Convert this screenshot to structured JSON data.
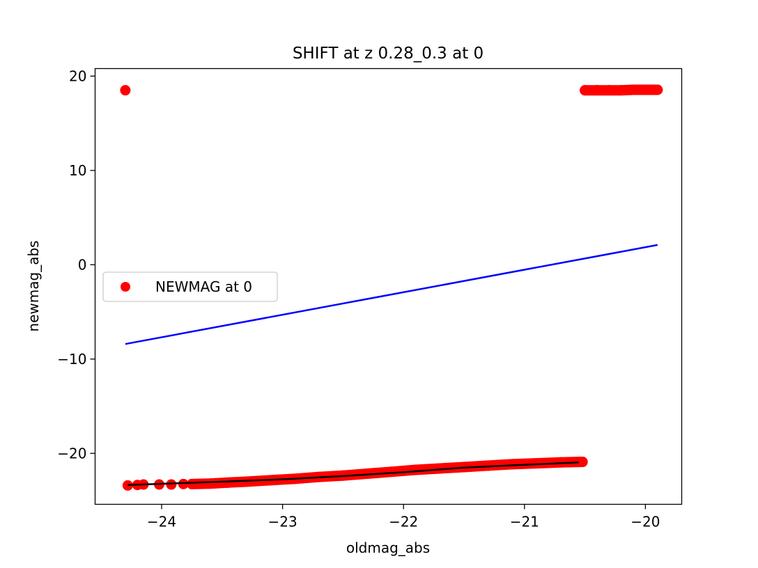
{
  "chart_data": {
    "type": "scatter",
    "title": "SHIFT at z 0.28_0.3 at 0",
    "xlabel": "oldmag_abs",
    "ylabel": "newmag_abs",
    "xlim": [
      -24.55,
      -19.7
    ],
    "ylim": [
      -25.4,
      20.8
    ],
    "x_ticks": [
      -24,
      -23,
      -22,
      -21,
      -20
    ],
    "x_tick_labels": [
      "−24",
      "−23",
      "−22",
      "−21",
      "−20"
    ],
    "y_ticks": [
      -20,
      -10,
      0,
      10,
      20
    ],
    "y_tick_labels": [
      "−20",
      "−10",
      "0",
      "10",
      "20"
    ],
    "grid": false,
    "legend": {
      "position": "center-left",
      "entries": [
        "NEWMAG at 0"
      ]
    },
    "series": [
      {
        "name": "NEWMAG at 0",
        "kind": "scatter",
        "color": "#ff0000",
        "points": [
          [
            -24.3,
            18.5
          ],
          [
            -20.5,
            18.5
          ],
          [
            -20.4,
            18.5
          ],
          [
            -20.3,
            18.5
          ],
          [
            -20.2,
            18.5
          ],
          [
            -20.1,
            18.55
          ],
          [
            -20.0,
            18.55
          ],
          [
            -19.9,
            18.55
          ],
          [
            -24.28,
            -23.4
          ],
          [
            -24.2,
            -23.35
          ],
          [
            -24.15,
            -23.3
          ],
          [
            -24.02,
            -23.3
          ],
          [
            -23.92,
            -23.3
          ],
          [
            -23.82,
            -23.25
          ],
          [
            -23.75,
            -23.25
          ],
          [
            -23.6,
            -23.2
          ],
          [
            -23.45,
            -23.1
          ],
          [
            -23.3,
            -23.0
          ],
          [
            -23.1,
            -22.85
          ],
          [
            -22.9,
            -22.7
          ],
          [
            -22.7,
            -22.5
          ],
          [
            -22.5,
            -22.35
          ],
          [
            -22.3,
            -22.15
          ],
          [
            -22.1,
            -21.95
          ],
          [
            -21.9,
            -21.75
          ],
          [
            -21.7,
            -21.6
          ],
          [
            -21.5,
            -21.45
          ],
          [
            -21.3,
            -21.3
          ],
          [
            -21.1,
            -21.15
          ],
          [
            -20.9,
            -21.05
          ],
          [
            -20.7,
            -20.95
          ],
          [
            -20.52,
            -20.9
          ]
        ]
      },
      {
        "kind": "line",
        "color": "#0000ff",
        "points": [
          [
            -24.3,
            -8.4
          ],
          [
            -19.9,
            2.1
          ]
        ]
      },
      {
        "kind": "line",
        "color": "#000000",
        "points": [
          [
            -24.28,
            -23.35
          ],
          [
            -23.5,
            -23.0
          ],
          [
            -23.0,
            -22.75
          ],
          [
            -22.5,
            -22.4
          ],
          [
            -22.0,
            -22.0
          ],
          [
            -21.5,
            -21.5
          ],
          [
            -20.55,
            -20.95
          ]
        ]
      }
    ]
  }
}
